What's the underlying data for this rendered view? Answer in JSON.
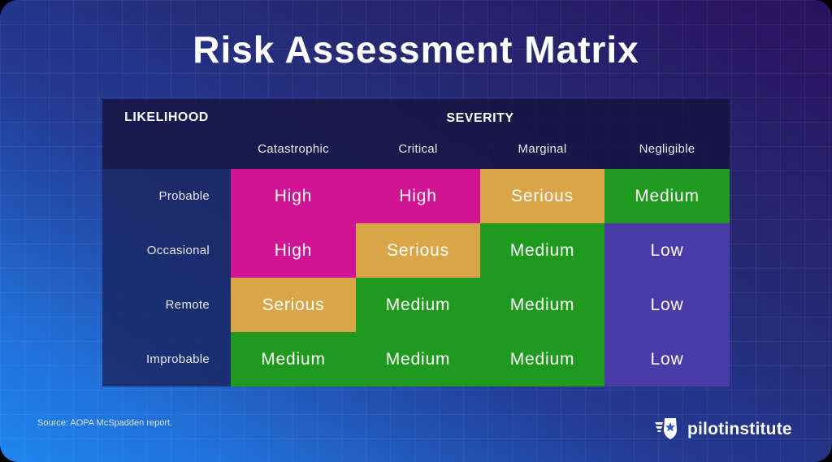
{
  "title": "Risk Assessment Matrix",
  "likelihood_label": "LIKELIHOOD",
  "severity_label": "SEVERITY",
  "severity_columns": [
    "Catastrophic",
    "Critical",
    "Marginal",
    "Negligible"
  ],
  "rows": [
    {
      "likelihood": "Probable",
      "cells": [
        "High",
        "High",
        "Serious",
        "Medium"
      ]
    },
    {
      "likelihood": "Occasional",
      "cells": [
        "High",
        "Serious",
        "Medium",
        "Low"
      ]
    },
    {
      "likelihood": "Remote",
      "cells": [
        "Serious",
        "Medium",
        "Medium",
        "Low"
      ]
    },
    {
      "likelihood": "Improbable",
      "cells": [
        "Medium",
        "Medium",
        "Medium",
        "Low"
      ]
    }
  ],
  "colors": {
    "High": "#d01493",
    "Serious": "#d9a547",
    "Medium": "#1f9a1f",
    "Low": "#4a3ba8"
  },
  "source": "Source: AOPA McSpadden report.",
  "brand": {
    "name": "pilotinstitute",
    "icon": "winged-star-shield-icon"
  }
}
